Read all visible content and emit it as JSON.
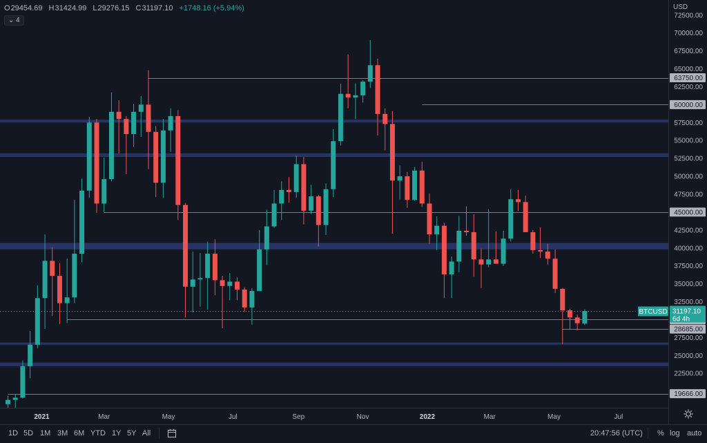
{
  "header": {
    "open_label": "O",
    "open_value": "29454.69",
    "high_label": "H",
    "high_value": "31424.99",
    "low_label": "L",
    "low_value": "29276.15",
    "close_label": "C",
    "close_value": "31197.10",
    "change": "+1748.16 (+5.94%)",
    "indicator_badge": "4",
    "currency": "USD"
  },
  "price_tag": {
    "symbol": "BTCUSD",
    "price": "31197.10",
    "countdown": "6d 4h"
  },
  "toolbar": {
    "ranges": [
      "1D",
      "5D",
      "1M",
      "3M",
      "6M",
      "YTD",
      "1Y",
      "5Y",
      "All"
    ],
    "time": "20:47:56 (UTC)",
    "percent": "%",
    "log": "log",
    "auto": "auto"
  },
  "colors": {
    "background": "#131722",
    "up": "#26a69a",
    "down": "#ef5350",
    "zone": "#2b3a6e",
    "level_line": "#787b86",
    "axis_text": "#b2b5be"
  },
  "chart_data": {
    "type": "candlestick",
    "symbol": "BTCUSD",
    "interval": "weekly",
    "ylim": [
      17700,
      74600
    ],
    "y_ticks": [
      22500,
      25000,
      27500,
      30000,
      32500,
      35000,
      37500,
      40000,
      42500,
      45000,
      47500,
      50000,
      52500,
      55000,
      57500,
      60000,
      62500,
      65000,
      67500,
      70000,
      72500
    ],
    "x_tick_labels": [
      "2021",
      "Mar",
      "May",
      "Jul",
      "Sep",
      "Nov",
      "2022",
      "Mar",
      "May",
      "Jul"
    ],
    "x_tick_dates": [
      "2021-01-01",
      "2021-03-01",
      "2021-05-01",
      "2021-07-01",
      "2021-09-01",
      "2021-11-01",
      "2022-01-01",
      "2022-03-01",
      "2022-05-01",
      "2022-07-01"
    ],
    "candles": [
      {
        "date": "2020-11-30",
        "open": 18200,
        "high": 19400,
        "low": 17600,
        "close": 18800
      },
      {
        "date": "2020-12-07",
        "open": 18800,
        "high": 19600,
        "low": 17600,
        "close": 19100
      },
      {
        "date": "2020-12-14",
        "open": 19100,
        "high": 24300,
        "low": 19000,
        "close": 23500
      },
      {
        "date": "2020-12-21",
        "open": 23500,
        "high": 28400,
        "low": 21800,
        "close": 26500
      },
      {
        "date": "2020-12-28",
        "open": 26500,
        "high": 34800,
        "low": 26000,
        "close": 33000
      },
      {
        "date": "2021-01-04",
        "open": 33000,
        "high": 41900,
        "low": 28700,
        "close": 38200
      },
      {
        "date": "2021-01-11",
        "open": 38200,
        "high": 40100,
        "low": 30500,
        "close": 36100
      },
      {
        "date": "2021-01-18",
        "open": 36100,
        "high": 37900,
        "low": 29400,
        "close": 32300
      },
      {
        "date": "2021-01-25",
        "open": 32300,
        "high": 38500,
        "low": 29500,
        "close": 33100
      },
      {
        "date": "2021-02-01",
        "open": 33100,
        "high": 46700,
        "low": 32300,
        "close": 39200
      },
      {
        "date": "2021-02-08",
        "open": 39200,
        "high": 49700,
        "low": 38000,
        "close": 48000
      },
      {
        "date": "2021-02-15",
        "open": 48000,
        "high": 58300,
        "low": 47000,
        "close": 57500
      },
      {
        "date": "2021-02-22",
        "open": 57500,
        "high": 58000,
        "low": 44900,
        "close": 46200
      },
      {
        "date": "2021-03-01",
        "open": 46200,
        "high": 52600,
        "low": 45000,
        "close": 49600
      },
      {
        "date": "2021-03-08",
        "open": 49600,
        "high": 61700,
        "low": 49300,
        "close": 59000
      },
      {
        "date": "2021-03-15",
        "open": 59000,
        "high": 60600,
        "low": 53200,
        "close": 58000
      },
      {
        "date": "2021-03-22",
        "open": 58000,
        "high": 58400,
        "low": 50300,
        "close": 55900
      },
      {
        "date": "2021-03-29",
        "open": 55900,
        "high": 60100,
        "low": 54100,
        "close": 59000
      },
      {
        "date": "2021-04-05",
        "open": 59000,
        "high": 61200,
        "low": 55500,
        "close": 60000
      },
      {
        "date": "2021-04-12",
        "open": 60000,
        "high": 64800,
        "low": 51000,
        "close": 56200
      },
      {
        "date": "2021-04-19",
        "open": 56200,
        "high": 57000,
        "low": 47100,
        "close": 49100
      },
      {
        "date": "2021-04-26",
        "open": 49100,
        "high": 58000,
        "low": 47000,
        "close": 56400
      },
      {
        "date": "2021-05-03",
        "open": 56400,
        "high": 59500,
        "low": 53400,
        "close": 58400
      },
      {
        "date": "2021-05-10",
        "open": 58400,
        "high": 59200,
        "low": 43900,
        "close": 46000
      },
      {
        "date": "2021-05-17",
        "open": 46000,
        "high": 46300,
        "low": 30300,
        "close": 34600
      },
      {
        "date": "2021-05-24",
        "open": 34600,
        "high": 39500,
        "low": 31000,
        "close": 35600
      },
      {
        "date": "2021-05-31",
        "open": 35600,
        "high": 39300,
        "low": 31800,
        "close": 35800
      },
      {
        "date": "2021-06-07",
        "open": 35800,
        "high": 40900,
        "low": 31400,
        "close": 39200
      },
      {
        "date": "2021-06-14",
        "open": 39200,
        "high": 41200,
        "low": 33400,
        "close": 35500
      },
      {
        "date": "2021-06-21",
        "open": 35500,
        "high": 36100,
        "low": 28800,
        "close": 34700
      },
      {
        "date": "2021-06-28",
        "open": 34700,
        "high": 36500,
        "low": 32700,
        "close": 35300
      },
      {
        "date": "2021-07-05",
        "open": 35300,
        "high": 35900,
        "low": 32700,
        "close": 34200
      },
      {
        "date": "2021-07-12",
        "open": 34200,
        "high": 34500,
        "low": 31100,
        "close": 31700
      },
      {
        "date": "2021-07-19",
        "open": 31700,
        "high": 34400,
        "low": 29300,
        "close": 34000
      },
      {
        "date": "2021-07-26",
        "open": 34000,
        "high": 42500,
        "low": 34000,
        "close": 39800
      },
      {
        "date": "2021-08-02",
        "open": 39800,
        "high": 45300,
        "low": 37600,
        "close": 43000
      },
      {
        "date": "2021-08-09",
        "open": 43000,
        "high": 48100,
        "low": 42800,
        "close": 46200
      },
      {
        "date": "2021-08-16",
        "open": 46200,
        "high": 49300,
        "low": 43900,
        "close": 48100
      },
      {
        "date": "2021-08-23",
        "open": 48100,
        "high": 49900,
        "low": 46300,
        "close": 47800
      },
      {
        "date": "2021-08-30",
        "open": 47800,
        "high": 52900,
        "low": 47000,
        "close": 51700
      },
      {
        "date": "2021-09-06",
        "open": 51700,
        "high": 52700,
        "low": 43300,
        "close": 45200
      },
      {
        "date": "2021-09-13",
        "open": 45200,
        "high": 48800,
        "low": 44800,
        "close": 47200
      },
      {
        "date": "2021-09-20",
        "open": 47200,
        "high": 47400,
        "low": 40200,
        "close": 43200
      },
      {
        "date": "2021-09-27",
        "open": 43200,
        "high": 49000,
        "low": 41800,
        "close": 48200
      },
      {
        "date": "2021-10-04",
        "open": 48200,
        "high": 56600,
        "low": 47100,
        "close": 54900
      },
      {
        "date": "2021-10-11",
        "open": 54900,
        "high": 62900,
        "low": 54300,
        "close": 61500
      },
      {
        "date": "2021-10-18",
        "open": 61500,
        "high": 67000,
        "low": 59500,
        "close": 61000
      },
      {
        "date": "2021-10-25",
        "open": 61000,
        "high": 63000,
        "low": 58000,
        "close": 61300
      },
      {
        "date": "2021-11-01",
        "open": 61300,
        "high": 63400,
        "low": 60300,
        "close": 63200
      },
      {
        "date": "2021-11-08",
        "open": 63200,
        "high": 69000,
        "low": 62300,
        "close": 65500
      },
      {
        "date": "2021-11-15",
        "open": 65500,
        "high": 66400,
        "low": 55700,
        "close": 58700
      },
      {
        "date": "2021-11-22",
        "open": 58700,
        "high": 59500,
        "low": 53600,
        "close": 57300
      },
      {
        "date": "2021-11-29",
        "open": 57300,
        "high": 59100,
        "low": 42000,
        "close": 49400
      },
      {
        "date": "2021-12-06",
        "open": 49400,
        "high": 51500,
        "low": 46800,
        "close": 50000
      },
      {
        "date": "2021-12-13",
        "open": 50000,
        "high": 50600,
        "low": 45600,
        "close": 46700
      },
      {
        "date": "2021-12-20",
        "open": 46700,
        "high": 51300,
        "low": 46600,
        "close": 50800
      },
      {
        "date": "2021-12-27",
        "open": 50800,
        "high": 52000,
        "low": 45700,
        "close": 46200
      },
      {
        "date": "2022-01-03",
        "open": 46200,
        "high": 47600,
        "low": 40600,
        "close": 41900
      },
      {
        "date": "2022-01-10",
        "open": 41900,
        "high": 44400,
        "low": 39700,
        "close": 43100
      },
      {
        "date": "2022-01-17",
        "open": 43100,
        "high": 43500,
        "low": 33000,
        "close": 36300
      },
      {
        "date": "2022-01-24",
        "open": 36300,
        "high": 38800,
        "low": 33000,
        "close": 38100
      },
      {
        "date": "2022-01-31",
        "open": 38100,
        "high": 44500,
        "low": 36600,
        "close": 42400
      },
      {
        "date": "2022-02-07",
        "open": 42400,
        "high": 45800,
        "low": 41700,
        "close": 42200
      },
      {
        "date": "2022-02-14",
        "open": 42200,
        "high": 44700,
        "low": 36000,
        "close": 38400
      },
      {
        "date": "2022-02-21",
        "open": 38400,
        "high": 39900,
        "low": 34400,
        "close": 37700
      },
      {
        "date": "2022-02-28",
        "open": 37700,
        "high": 45400,
        "low": 37300,
        "close": 38400
      },
      {
        "date": "2022-03-07",
        "open": 38400,
        "high": 42300,
        "low": 37800,
        "close": 37800
      },
      {
        "date": "2022-03-14",
        "open": 37800,
        "high": 42400,
        "low": 37500,
        "close": 41300
      },
      {
        "date": "2022-03-21",
        "open": 41300,
        "high": 48200,
        "low": 40900,
        "close": 46800
      },
      {
        "date": "2022-03-28",
        "open": 46800,
        "high": 48100,
        "low": 45200,
        "close": 46400
      },
      {
        "date": "2022-04-04",
        "open": 46400,
        "high": 47300,
        "low": 42200,
        "close": 42200
      },
      {
        "date": "2022-04-11",
        "open": 42200,
        "high": 42500,
        "low": 39200,
        "close": 39700
      },
      {
        "date": "2022-04-18",
        "open": 39700,
        "high": 42900,
        "low": 38600,
        "close": 39500
      },
      {
        "date": "2022-04-25",
        "open": 39500,
        "high": 40600,
        "low": 37700,
        "close": 38500
      },
      {
        "date": "2022-05-02",
        "open": 38500,
        "high": 39800,
        "low": 33700,
        "close": 34300
      },
      {
        "date": "2022-05-09",
        "open": 34300,
        "high": 34400,
        "low": 26600,
        "close": 31300
      },
      {
        "date": "2022-05-16",
        "open": 31300,
        "high": 31500,
        "low": 28700,
        "close": 30300
      },
      {
        "date": "2022-05-23",
        "open": 30300,
        "high": 30700,
        "low": 28500,
        "close": 29500
      },
      {
        "date": "2022-05-30",
        "open": 29455,
        "high": 31425,
        "low": 29276,
        "close": 31197
      }
    ],
    "horizontal_levels": [
      {
        "price": 63750,
        "label": "63750.00",
        "from": "2021-04-12"
      },
      {
        "price": 60000,
        "label": "60000.00",
        "from": "2021-12-27"
      },
      {
        "price": 45000,
        "label": "45000.00",
        "from": "2021-03-01"
      },
      {
        "price": 30000,
        "label": "30000.00",
        "from": "2021-01-25"
      },
      {
        "price": 28685,
        "label": "28685.00",
        "from": "2022-05-09"
      },
      {
        "price": 19666,
        "label": "19666.00",
        "from": "2020-11-30"
      }
    ],
    "zones": [
      {
        "low": 57500,
        "high": 57900
      },
      {
        "low": 52700,
        "high": 53200
      },
      {
        "low": 39800,
        "high": 40700
      },
      {
        "low": 26500,
        "high": 26800
      },
      {
        "low": 23500,
        "high": 24000
      }
    ],
    "last_price": 31197.1
  }
}
